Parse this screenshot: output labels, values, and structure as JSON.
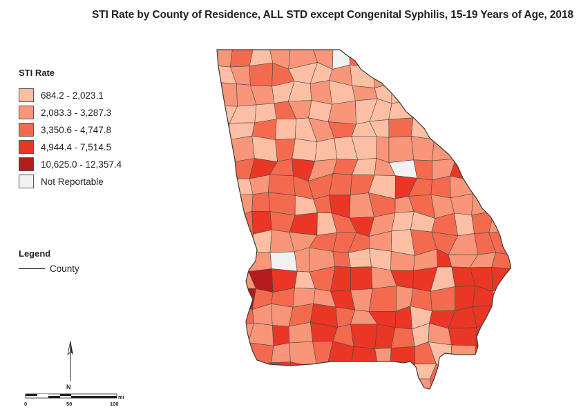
{
  "title": "STI Rate by County of Residence, ALL STD except Congenital Syphilis, 15-19 Years of Age, 2018",
  "rate_legend": {
    "heading": "STI Rate",
    "items": [
      {
        "label": "684.2 - 2,023.1",
        "color": "#fcbfa4"
      },
      {
        "label": "2,083.3 - 3,287.3",
        "color": "#f99578"
      },
      {
        "label": "3,350.6 - 4,747.8",
        "color": "#f46a4f"
      },
      {
        "label": "4,944.4 - 7,514.5",
        "color": "#ea3625"
      },
      {
        "label": "10,625.0 - 12,357.4",
        "color": "#b31b1c"
      },
      {
        "label": "Not Reportable",
        "color": "#f1f1f2"
      }
    ]
  },
  "boundary_legend": {
    "heading": "Legend",
    "item_label": "County"
  },
  "north_arrow": {
    "label": "N"
  },
  "scale_bar": {
    "unit": "mi",
    "ticks": [
      "0",
      "50",
      "100"
    ]
  },
  "colors": {
    "county_border": "#4a4a4a",
    "text": "#231f20"
  }
}
